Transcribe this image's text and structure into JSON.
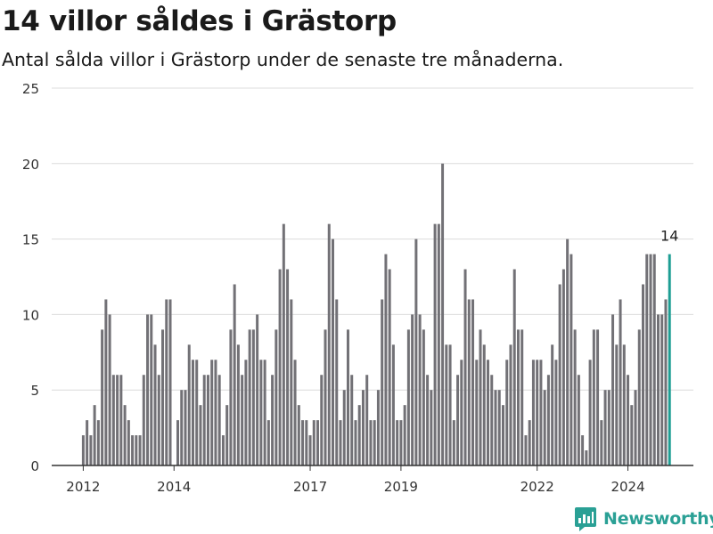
{
  "title": "14 villor såldes i Grästorp",
  "subtitle": "Antal sålda villor i Grästorp under de senaste tre månaderna.",
  "brand": "Newsworthy",
  "colors": {
    "bar": "#727176",
    "highlight": "#1e9e94",
    "grid": "#dcdcdc",
    "axis": "#333333",
    "brand": "#2aa095"
  },
  "chart_data": {
    "type": "bar",
    "title": "14 villor såldes i Grästorp",
    "subtitle": "Antal sålda villor i Grästorp under de senaste tre månaderna.",
    "xlabel": "",
    "ylabel": "",
    "ylim": [
      0,
      25
    ],
    "yticks": [
      0,
      5,
      10,
      15,
      20,
      25
    ],
    "grid": "horizontal",
    "legend": "none",
    "start": "2012-01",
    "frequency": "monthly",
    "x_ticks": [
      {
        "label": "2012",
        "date": "2012-01"
      },
      {
        "label": "2014",
        "date": "2014-01"
      },
      {
        "label": "2017",
        "date": "2017-01"
      },
      {
        "label": "2019",
        "date": "2019-01"
      },
      {
        "label": "2022",
        "date": "2022-01"
      },
      {
        "label": "2024",
        "date": "2024-01"
      }
    ],
    "values": [
      2,
      3,
      2,
      4,
      3,
      9,
      11,
      10,
      6,
      6,
      6,
      4,
      3,
      2,
      2,
      2,
      6,
      10,
      10,
      8,
      6,
      9,
      11,
      11,
      0,
      3,
      5,
      5,
      8,
      7,
      7,
      4,
      6,
      6,
      7,
      7,
      6,
      2,
      4,
      9,
      12,
      8,
      6,
      7,
      9,
      9,
      10,
      7,
      7,
      3,
      6,
      9,
      13,
      16,
      13,
      11,
      7,
      4,
      3,
      3,
      2,
      3,
      3,
      6,
      9,
      16,
      15,
      11,
      3,
      5,
      9,
      6,
      3,
      4,
      5,
      6,
      3,
      3,
      5,
      11,
      14,
      13,
      8,
      3,
      3,
      4,
      9,
      10,
      15,
      10,
      9,
      6,
      5,
      16,
      16,
      20,
      8,
      8,
      3,
      6,
      7,
      13,
      11,
      11,
      7,
      9,
      8,
      7,
      6,
      5,
      5,
      4,
      7,
      8,
      13,
      9,
      9,
      2,
      3,
      7,
      7,
      7,
      5,
      6,
      8,
      7,
      12,
      13,
      15,
      14,
      9,
      6,
      2,
      1,
      7,
      9,
      9,
      3,
      5,
      5,
      10,
      8,
      11,
      8,
      6,
      4,
      5,
      9,
      12,
      14,
      14,
      14,
      10,
      10,
      11,
      14
    ],
    "highlight": {
      "date": "2024-12",
      "value": 14,
      "label": "14"
    }
  }
}
